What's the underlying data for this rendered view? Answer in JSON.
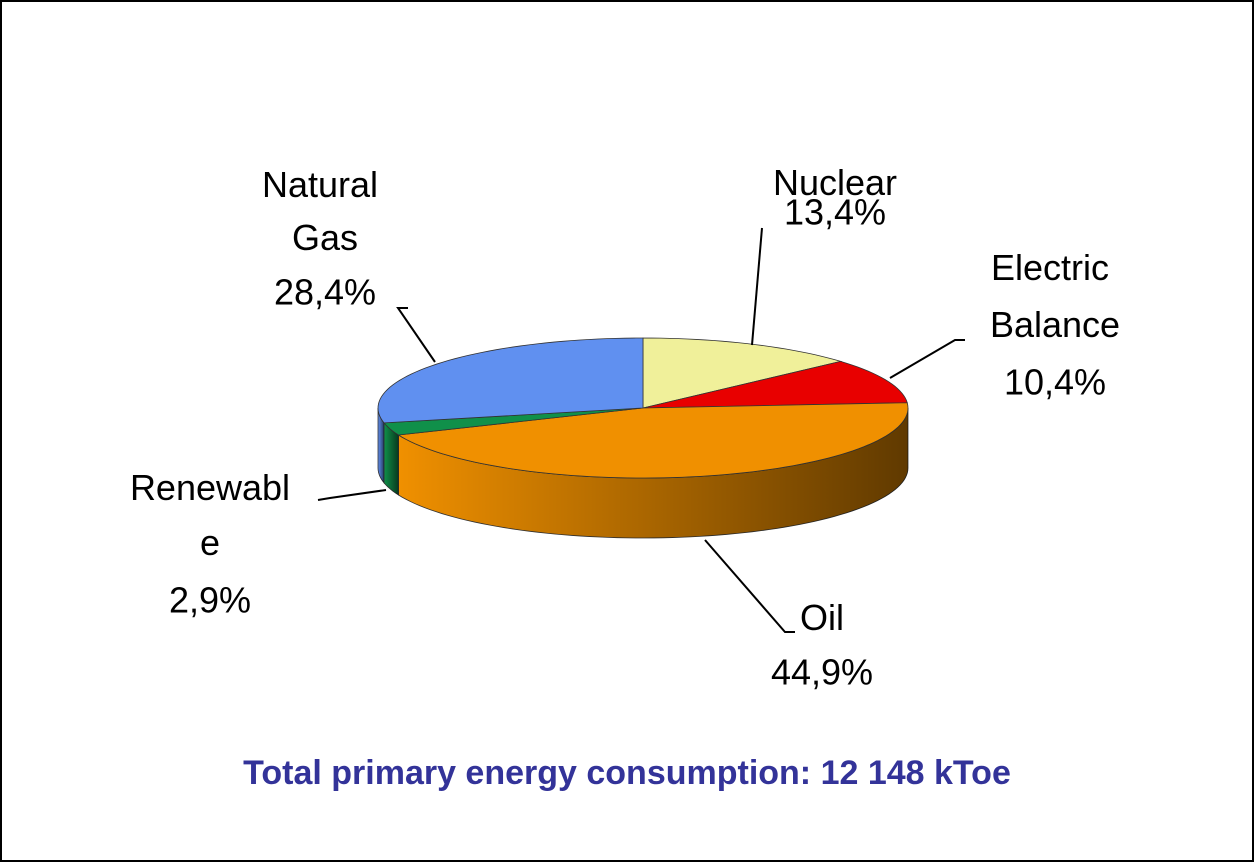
{
  "chart_data": {
    "type": "pie3d",
    "title": "Total primary energy consumption: 12 148 kToe",
    "categories": [
      "Nuclear",
      "Electric Balance",
      "Oil",
      "Renewable",
      "Natural Gas"
    ],
    "values": [
      13.4,
      10.4,
      44.9,
      2.9,
      28.4
    ],
    "value_labels": [
      "13,4%",
      "10,4%",
      "44,9%",
      "2,9%",
      "28,4%"
    ],
    "colors": [
      "#f0f09a",
      "#e80000",
      "#f09000",
      "#10904a",
      "#6090f0"
    ]
  }
}
